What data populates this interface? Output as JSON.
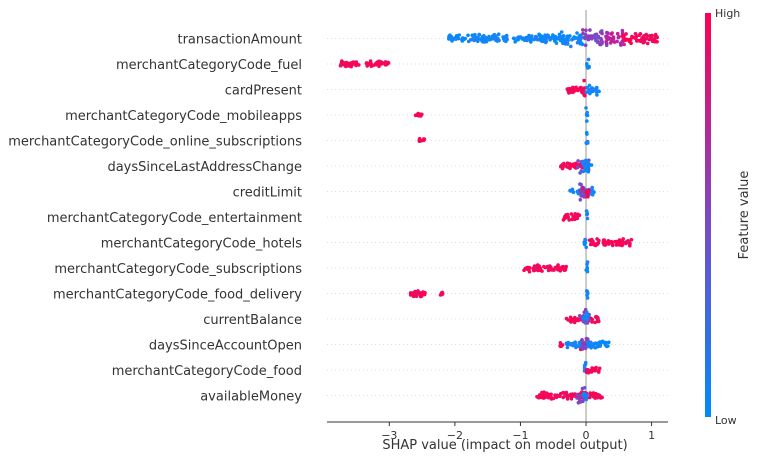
{
  "chart_data": {
    "type": "beeswarm",
    "title": "",
    "xlabel": "SHAP value (impact on model output)",
    "ylabel": "",
    "xlim": [
      -3.95,
      1.25
    ],
    "xticks": [
      -3,
      -2,
      -1,
      0,
      1
    ],
    "xtick_labels": [
      "−3",
      "−2",
      "−1",
      "0",
      "1"
    ],
    "colorbar": {
      "label": "Feature value",
      "high_label": "High",
      "low_label": "Low",
      "low_color": "#008bfb",
      "high_color": "#ff0052"
    },
    "features": [
      {
        "name": "transactionAmount",
        "segments": [
          {
            "from": -2.1,
            "to": -0.3,
            "color": "low",
            "spread": 0.45
          },
          {
            "from": -0.4,
            "to": -0.05,
            "color": "low",
            "spread": 0.75
          },
          {
            "from": -0.05,
            "to": 0.35,
            "color": "mid",
            "spread": 0.85
          },
          {
            "from": 0.3,
            "to": 0.6,
            "color": "midhigh",
            "spread": 0.75
          },
          {
            "from": 0.55,
            "to": 1.1,
            "color": "high",
            "spread": 0.55
          }
        ]
      },
      {
        "name": "merchantCategoryCode_fuel",
        "segments": [
          {
            "from": 0.0,
            "to": 0.05,
            "color": "low",
            "spread": 0.9
          },
          {
            "from": -3.75,
            "to": -3.45,
            "color": "high",
            "spread": 0.3
          },
          {
            "from": -3.35,
            "to": -3.0,
            "color": "high",
            "spread": 0.3
          }
        ]
      },
      {
        "name": "cardPresent",
        "segments": [
          {
            "from": -0.3,
            "to": -0.05,
            "color": "high",
            "spread": 0.4
          },
          {
            "from": -0.1,
            "to": 0.0,
            "color": "high",
            "spread": 0.95
          },
          {
            "from": 0.0,
            "to": 0.2,
            "color": "low",
            "spread": 0.55
          }
        ]
      },
      {
        "name": "merchantCategoryCode_mobileapps",
        "segments": [
          {
            "from": 0.0,
            "to": 0.03,
            "color": "low",
            "spread": 0.8
          },
          {
            "from": -2.6,
            "to": -2.5,
            "color": "high",
            "spread": 0.25
          }
        ]
      },
      {
        "name": "merchantCategoryCode_online_subscriptions",
        "segments": [
          {
            "from": 0.0,
            "to": 0.03,
            "color": "low",
            "spread": 0.8
          },
          {
            "from": -2.55,
            "to": -2.45,
            "color": "high",
            "spread": 0.25
          }
        ]
      },
      {
        "name": "daysSinceLastAddressChange",
        "segments": [
          {
            "from": -0.4,
            "to": -0.05,
            "color": "high",
            "spread": 0.3
          },
          {
            "from": -0.15,
            "to": 0.05,
            "color": "mid",
            "spread": 0.8
          },
          {
            "from": -0.05,
            "to": 0.1,
            "color": "low",
            "spread": 0.7
          }
        ]
      },
      {
        "name": "creditLimit",
        "segments": [
          {
            "from": -0.25,
            "to": 0.15,
            "color": "low",
            "spread": 0.4
          },
          {
            "from": -0.1,
            "to": 0.05,
            "color": "mid",
            "spread": 0.9
          },
          {
            "from": -0.05,
            "to": 0.05,
            "color": "high",
            "spread": 0.6
          }
        ]
      },
      {
        "name": "merchantCategoryCode_entertainment",
        "segments": [
          {
            "from": 0.0,
            "to": 0.03,
            "color": "low",
            "spread": 0.85
          },
          {
            "from": -0.35,
            "to": -0.1,
            "color": "high",
            "spread": 0.35
          }
        ]
      },
      {
        "name": "merchantCategoryCode_hotels",
        "segments": [
          {
            "from": -0.03,
            "to": 0.01,
            "color": "low",
            "spread": 0.85
          },
          {
            "from": 0.05,
            "to": 0.7,
            "color": "high",
            "spread": 0.35
          }
        ]
      },
      {
        "name": "merchantCategoryCode_subscriptions",
        "segments": [
          {
            "from": 0.0,
            "to": 0.03,
            "color": "low",
            "spread": 0.85
          },
          {
            "from": -0.95,
            "to": -0.3,
            "color": "high",
            "spread": 0.35
          }
        ]
      },
      {
        "name": "merchantCategoryCode_food_delivery",
        "segments": [
          {
            "from": 0.0,
            "to": 0.03,
            "color": "low",
            "spread": 0.8
          },
          {
            "from": -2.7,
            "to": -2.45,
            "color": "high",
            "spread": 0.3
          },
          {
            "from": -2.22,
            "to": -2.18,
            "color": "high",
            "spread": 0.2
          }
        ]
      },
      {
        "name": "currentBalance",
        "segments": [
          {
            "from": -0.3,
            "to": 0.2,
            "color": "high",
            "spread": 0.35
          },
          {
            "from": -0.1,
            "to": 0.05,
            "color": "mid",
            "spread": 0.95
          },
          {
            "from": -0.05,
            "to": 0.05,
            "color": "low",
            "spread": 0.7
          }
        ]
      },
      {
        "name": "daysSinceAccountOpen",
        "segments": [
          {
            "from": -0.4,
            "to": -0.35,
            "color": "high",
            "spread": 0.3
          },
          {
            "from": -0.1,
            "to": 0.02,
            "color": "high",
            "spread": 0.6
          },
          {
            "from": -0.3,
            "to": 0.35,
            "color": "low",
            "spread": 0.35
          },
          {
            "from": -0.08,
            "to": 0.04,
            "color": "mid",
            "spread": 0.9
          }
        ]
      },
      {
        "name": "merchantCategoryCode_food",
        "segments": [
          {
            "from": -0.03,
            "to": 0.01,
            "color": "low",
            "spread": 0.85
          },
          {
            "from": 0.0,
            "to": 0.22,
            "color": "high",
            "spread": 0.3
          }
        ]
      },
      {
        "name": "availableMoney",
        "segments": [
          {
            "from": -0.75,
            "to": 0.25,
            "color": "high",
            "spread": 0.35
          },
          {
            "from": -0.15,
            "to": 0.02,
            "color": "mid",
            "spread": 0.95
          },
          {
            "from": -0.05,
            "to": 0.03,
            "color": "low",
            "spread": 0.7
          }
        ]
      }
    ]
  }
}
